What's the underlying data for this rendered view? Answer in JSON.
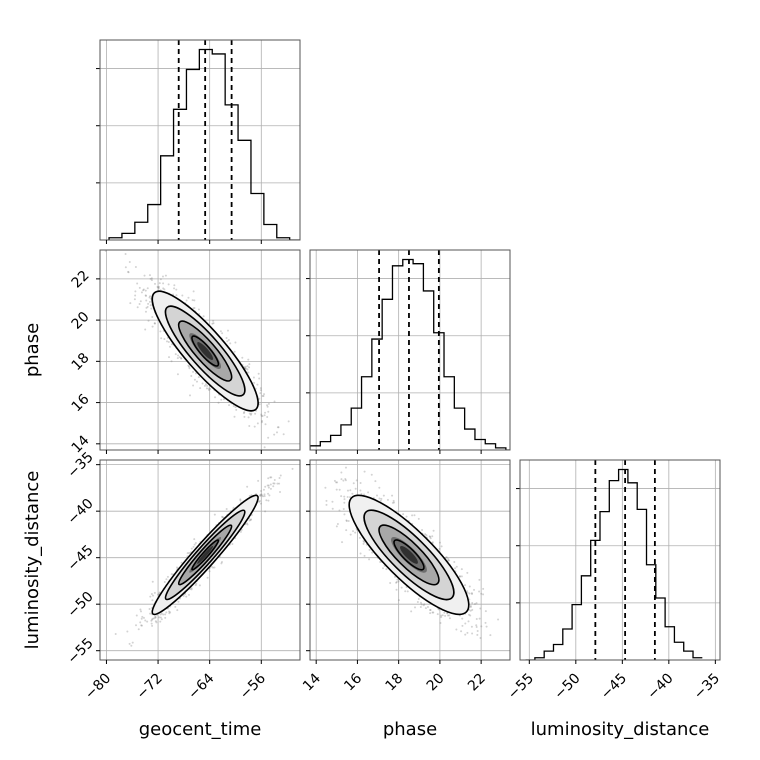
{
  "chart_data": {
    "type": "corner",
    "parameters": [
      "geocent_time",
      "phase",
      "luminosity_distance"
    ],
    "axis_labels": {
      "geocent_time": "geocent_time",
      "phase": "phase",
      "luminosity_distance": "luminosity_distance"
    },
    "ranges": {
      "geocent_time": [
        -81,
        -50
      ],
      "phase": [
        13.7,
        23.4
      ],
      "luminosity_distance": [
        -56,
        -34.5
      ]
    },
    "ticks": {
      "geocent_time": [
        -80,
        -72,
        -64,
        -56
      ],
      "phase": [
        14,
        16,
        18,
        20,
        22
      ],
      "luminosity_distance": [
        -55,
        -50,
        -45,
        -40,
        -35
      ]
    },
    "tick_labels": {
      "geocent_time": [
        "−80",
        "−72",
        "−64",
        "−56"
      ],
      "phase": [
        "14",
        "16",
        "18",
        "20",
        "22"
      ],
      "luminosity_distance": [
        "−55",
        "−50",
        "−45",
        "−40",
        "−35"
      ]
    },
    "histograms": {
      "geocent_time": {
        "bin_edges": [
          -79.6,
          -77.6,
          -75.6,
          -73.6,
          -71.6,
          -69.6,
          -67.6,
          -65.6,
          -63.6,
          -61.6,
          -59.6,
          -57.6,
          -55.6,
          -53.6,
          -51.6,
          -49.6
        ],
        "counts": [
          1,
          3,
          8,
          16,
          38,
          59,
          77,
          86,
          84,
          61,
          45,
          21,
          7,
          1,
          0
        ]
      },
      "phase": {
        "bin_edges": [
          13.7,
          14.2,
          14.7,
          15.2,
          15.7,
          16.2,
          16.7,
          17.2,
          17.7,
          18.2,
          18.7,
          19.2,
          19.7,
          20.2,
          20.7,
          21.2,
          21.7,
          22.2,
          22.7,
          23.2,
          23.7
        ],
        "counts": [
          2,
          4,
          7,
          12,
          20,
          35,
          53,
          72,
          88,
          91,
          89,
          76,
          56,
          35,
          20,
          10,
          5,
          3,
          1,
          0
        ]
      },
      "luminosity_distance": {
        "bin_edges": [
          -55.4,
          -54.4,
          -53.4,
          -52.4,
          -51.4,
          -50.4,
          -49.4,
          -48.4,
          -47.4,
          -46.4,
          -45.4,
          -44.4,
          -43.4,
          -42.4,
          -41.4,
          -40.4,
          -39.4,
          -38.4,
          -37.4,
          -36.4
        ],
        "counts": [
          0,
          1,
          4,
          7,
          14,
          25,
          38,
          54,
          67,
          81,
          86,
          80,
          68,
          43,
          28,
          15,
          8,
          4,
          1
        ]
      }
    },
    "quantiles": {
      "geocent_time": [
        -68.8,
        -64.7,
        -60.6
      ],
      "phase": [
        17.05,
        18.5,
        19.95
      ],
      "luminosity_distance": [
        -47.9,
        -44.7,
        -41.5
      ]
    },
    "pairs": [
      {
        "x": "geocent_time",
        "y": "phase",
        "center": [
          -64.7,
          18.5
        ],
        "sigma": [
          4.1,
          1.45
        ],
        "correlation": -0.87
      },
      {
        "x": "geocent_time",
        "y": "luminosity_distance",
        "center": [
          -64.7,
          -44.7
        ],
        "sigma": [
          4.1,
          3.2
        ],
        "correlation": 0.96
      },
      {
        "x": "phase",
        "y": "luminosity_distance",
        "center": [
          18.5,
          -44.7
        ],
        "sigma": [
          1.45,
          3.2
        ],
        "correlation": -0.84
      }
    ],
    "contour_levels_sigma": [
      0.5,
      1.0,
      1.5,
      2.0
    ],
    "grid": true,
    "colors": {
      "line": "#000000",
      "grid": "#b0b0b0",
      "scatter": "#808080"
    }
  }
}
